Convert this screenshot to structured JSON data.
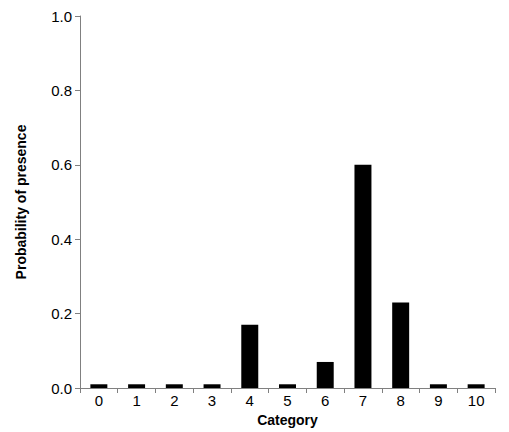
{
  "chart_data": {
    "type": "bar",
    "xlabel": "Category",
    "ylabel": "Probability of presence",
    "categories": [
      "0",
      "1",
      "2",
      "3",
      "4",
      "5",
      "6",
      "7",
      "8",
      "9",
      "10"
    ],
    "values": [
      0.01,
      0.01,
      0.01,
      0.01,
      0.17,
      0.01,
      0.07,
      0.6,
      0.23,
      0.01,
      0.01
    ],
    "color": "#000000",
    "ylim": [
      0,
      1
    ],
    "yticks": [
      {
        "value": 0,
        "label": "0.0"
      },
      {
        "value": 0.2,
        "label": "0.2"
      },
      {
        "value": 0.4,
        "label": "0.4"
      },
      {
        "value": 0.6,
        "label": "0.6"
      },
      {
        "value": 0.8,
        "label": "0.8"
      },
      {
        "value": 1,
        "label": "1.0"
      }
    ],
    "grid": false
  }
}
